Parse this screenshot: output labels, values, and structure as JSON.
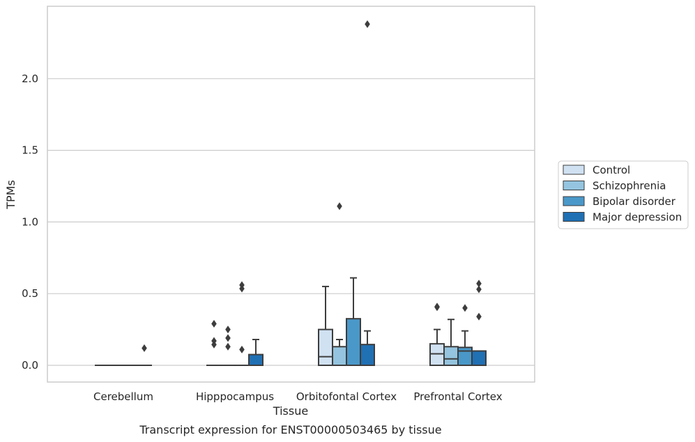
{
  "chart_data": {
    "type": "box",
    "title": "",
    "caption": "Transcript expression for ENST00000503465 by tissue",
    "xlabel": "Tissue",
    "ylabel": "TPMs",
    "ylim": [
      -0.115,
      2.5
    ],
    "yticks": [
      0.0,
      0.5,
      1.0,
      1.5,
      2.0
    ],
    "ytick_labels": [
      "0.0",
      "0.5",
      "1.0",
      "1.5",
      "2.0"
    ],
    "grid": "horizontal",
    "legend_position": "right",
    "categories": [
      "Cerebellum",
      "Hipppocampus",
      "Orbitofontal Cortex",
      "Prefrontal Cortex"
    ],
    "series": [
      {
        "name": "Control",
        "color": "#d0e1f2",
        "boxes": [
          {
            "q1": 0,
            "median": 0,
            "q3": 0,
            "whisker_low": 0,
            "whisker_high": 0,
            "outliers": []
          },
          {
            "q1": 0,
            "median": 0,
            "q3": 0,
            "whisker_low": 0,
            "whisker_high": 0,
            "outliers": [
              0.29,
              0.17,
              0.145
            ]
          },
          {
            "q1": 0,
            "median": 0.06,
            "q3": 0.25,
            "whisker_low": 0,
            "whisker_high": 0.55,
            "outliers": []
          },
          {
            "q1": 0,
            "median": 0.08,
            "q3": 0.15,
            "whisker_low": 0,
            "whisker_high": 0.25,
            "outliers": [
              0.41,
              0.405
            ]
          }
        ]
      },
      {
        "name": "Schizophrenia",
        "color": "#94c4df",
        "boxes": [
          {
            "q1": 0,
            "median": 0,
            "q3": 0,
            "whisker_low": 0,
            "whisker_high": 0,
            "outliers": []
          },
          {
            "q1": 0,
            "median": 0,
            "q3": 0,
            "whisker_low": 0,
            "whisker_high": 0,
            "outliers": [
              0.25,
              0.19,
              0.13
            ]
          },
          {
            "q1": 0,
            "median": 0,
            "q3": 0.13,
            "whisker_low": 0,
            "whisker_high": 0.18,
            "outliers": [
              1.11
            ]
          },
          {
            "q1": 0,
            "median": 0.045,
            "q3": 0.13,
            "whisker_low": 0,
            "whisker_high": 0.32,
            "outliers": []
          }
        ]
      },
      {
        "name": "Bipolar disorder",
        "color": "#4a98c9",
        "boxes": [
          {
            "q1": 0,
            "median": 0,
            "q3": 0,
            "whisker_low": 0,
            "whisker_high": 0,
            "outliers": []
          },
          {
            "q1": 0,
            "median": 0,
            "q3": 0,
            "whisker_low": 0,
            "whisker_high": 0,
            "outliers": [
              0.56,
              0.535,
              0.11
            ]
          },
          {
            "q1": 0,
            "median": 0,
            "q3": 0.325,
            "whisker_low": 0,
            "whisker_high": 0.61,
            "outliers": []
          },
          {
            "q1": 0,
            "median": 0.1,
            "q3": 0.125,
            "whisker_low": 0,
            "whisker_high": 0.24,
            "outliers": [
              0.4
            ]
          }
        ]
      },
      {
        "name": "Major depression",
        "color": "#2070b4",
        "boxes": [
          {
            "q1": 0,
            "median": 0,
            "q3": 0,
            "whisker_low": 0,
            "whisker_high": 0,
            "outliers": [
              0.12
            ]
          },
          {
            "q1": 0,
            "median": 0,
            "q3": 0.075,
            "whisker_low": 0,
            "whisker_high": 0.18,
            "outliers": []
          },
          {
            "q1": 0,
            "median": 0,
            "q3": 0.145,
            "whisker_low": 0,
            "whisker_high": 0.24,
            "outliers": [
              2.38
            ]
          },
          {
            "q1": 0,
            "median": 0,
            "q3": 0.1,
            "whisker_low": 0,
            "whisker_high": 0.1,
            "outliers": [
              0.57,
              0.53,
              0.34
            ]
          }
        ]
      }
    ]
  }
}
